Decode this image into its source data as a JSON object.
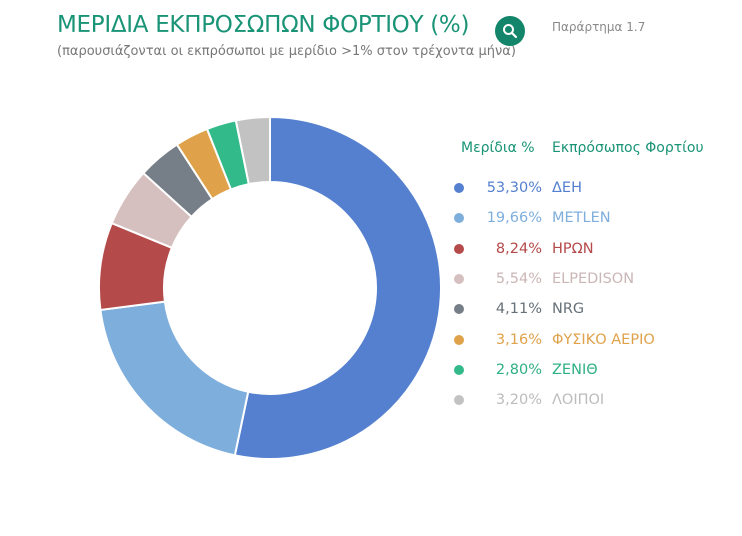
{
  "header": {
    "title": "ΜΕΡΙΔΙΑ ΕΚΠΡΟΣΩΠΩΝ ΦΟΡΤΙΟΥ (%)",
    "subtitle": "(παρουσιάζονται οι εκπρόσωποι με μερίδιο >1% στον τρέχοντα μήνα)",
    "appendix_label": "Παράρτημα 1.7",
    "search_icon": "search-icon"
  },
  "colors": {
    "title": "#1a9476",
    "button": "#13856a"
  },
  "chart_data": {
    "type": "pie",
    "donut": true,
    "legend_placement": "right",
    "legend_headers": {
      "value": "Μερίδια %",
      "label": "Εκπρόσωπος Φορτίου"
    },
    "categories": [
      "ΔΕΗ",
      "METLEN",
      "ΗΡΩΝ",
      "ELPEDISON",
      "NRG",
      "ΦΥΣΙΚΟ ΑΕΡΙΟ",
      "ΖΕΝΙΘ",
      "ΛΟΙΠΟΙ"
    ],
    "values": [
      53.3,
      19.66,
      8.24,
      5.54,
      4.11,
      3.16,
      2.8,
      3.2
    ],
    "value_labels": [
      "53,30%",
      "19,66%",
      "8,24%",
      "5,54%",
      "4,11%",
      "3,16%",
      "2,80%",
      "3,20%"
    ],
    "colors": [
      "#5480cf",
      "#7eaedc",
      "#b44a49",
      "#d6bfbf",
      "#767f88",
      "#dfa24a",
      "#33ba8a",
      "#c2c2c2"
    ],
    "text_colors": [
      "#5480cf",
      "#7eaedc",
      "#b44a49",
      "#cbb6b6",
      "#667078",
      "#dfa24a",
      "#2fb084",
      "#bcbcbc"
    ]
  }
}
